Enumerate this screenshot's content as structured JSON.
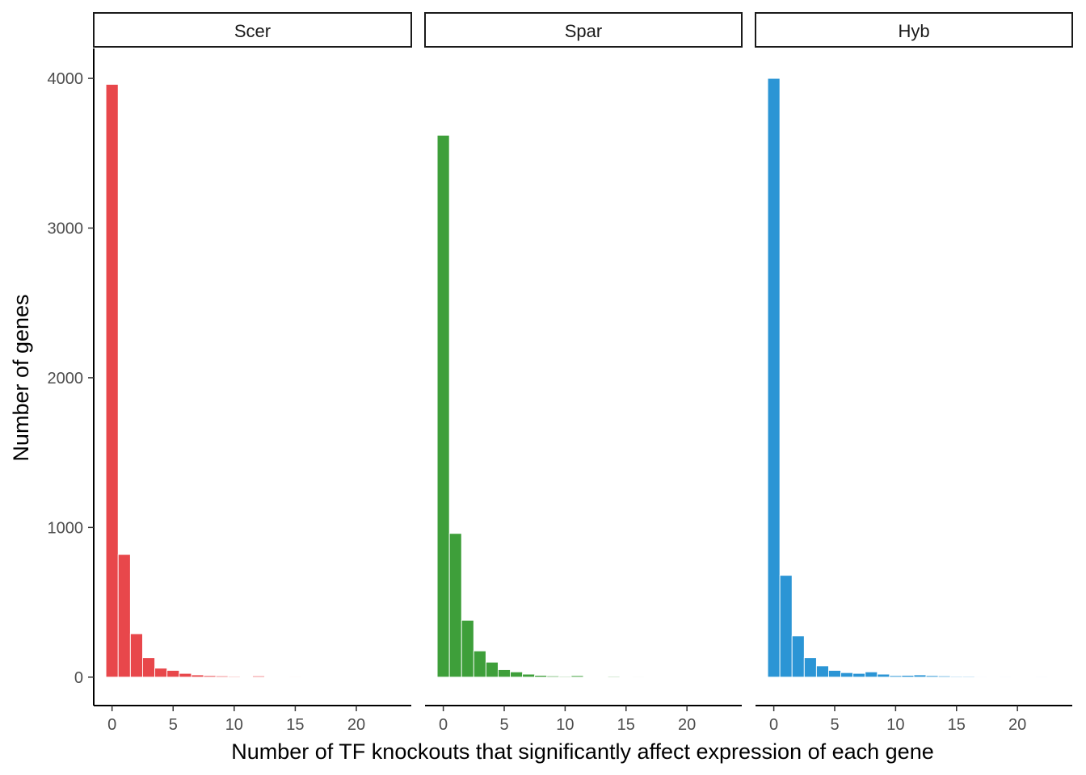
{
  "chart_data": {
    "type": "bar",
    "facet_by": "species",
    "xlabel": "Number of TF knockouts that significantly affect expression of each gene",
    "ylabel": "Number of genes",
    "xlim": [
      -1.5,
      24.5
    ],
    "ylim": [
      -190,
      4200
    ],
    "x_ticks": [
      0,
      5,
      10,
      15,
      20
    ],
    "y_ticks": [
      0,
      1000,
      2000,
      3000,
      4000
    ],
    "grid": false,
    "legend": "none",
    "facets": [
      {
        "name": "Scer",
        "color": "#E8474B",
        "x": [
          0,
          1,
          2,
          3,
          4,
          5,
          6,
          7,
          8,
          9,
          10,
          11,
          12,
          13,
          14,
          15
        ],
        "values": [
          3960,
          820,
          290,
          130,
          60,
          45,
          25,
          15,
          10,
          8,
          6,
          4,
          8,
          3,
          3,
          5
        ]
      },
      {
        "name": "Spar",
        "color": "#3E9F3A",
        "x": [
          0,
          1,
          2,
          3,
          4,
          5,
          6,
          7,
          8,
          9,
          10,
          11,
          12,
          13,
          14,
          15,
          16,
          17,
          18,
          19,
          20,
          21
        ],
        "values": [
          3620,
          960,
          380,
          175,
          100,
          50,
          35,
          20,
          12,
          8,
          6,
          10,
          2,
          4,
          6,
          2,
          5,
          2,
          3,
          2,
          2,
          2
        ]
      },
      {
        "name": "Hyb",
        "color": "#2B95D5",
        "x": [
          0,
          1,
          2,
          3,
          4,
          5,
          6,
          7,
          8,
          9,
          10,
          11,
          12,
          13,
          14,
          15,
          16,
          17,
          18,
          19,
          20,
          21,
          22,
          23
        ],
        "values": [
          4000,
          680,
          275,
          130,
          75,
          45,
          30,
          25,
          35,
          20,
          10,
          12,
          15,
          10,
          8,
          6,
          6,
          5,
          4,
          5,
          2,
          2,
          5,
          4
        ]
      }
    ]
  }
}
